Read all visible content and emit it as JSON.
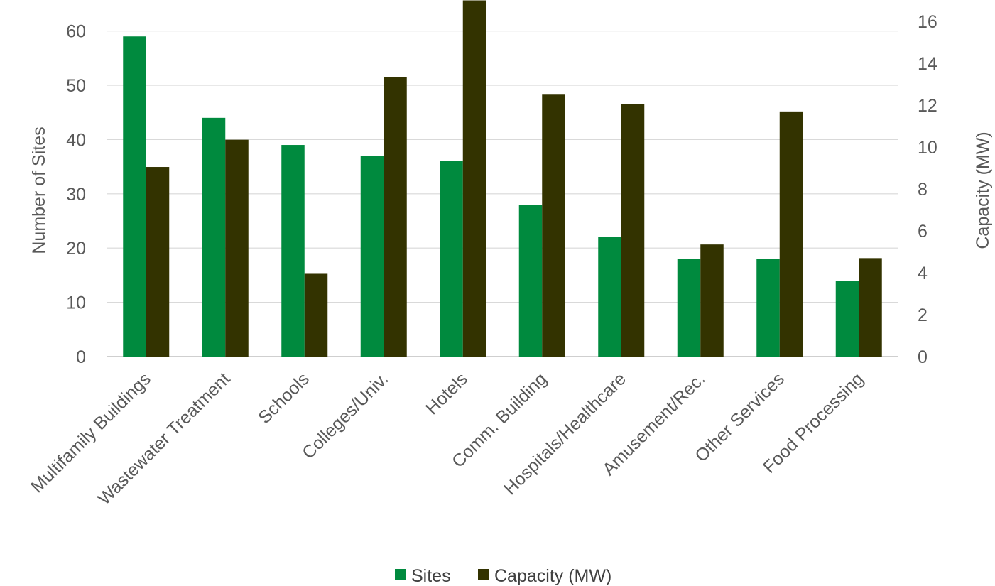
{
  "chart_data": {
    "type": "bar",
    "title": "",
    "categories": [
      "Multifamily Buildings",
      "Wastewater Treatment",
      "Schools",
      "Colleges/Univ.",
      "Hotels",
      "Comm. Building",
      "Hospitals/Healthcare",
      "Amusement/Rec.",
      "Other Services",
      "Food Processing"
    ],
    "series": [
      {
        "name": "Sites",
        "axis": "left",
        "color": "#008a3e",
        "values": [
          59,
          44,
          39,
          37,
          36,
          28,
          22,
          18,
          18,
          14
        ]
      },
      {
        "name": "Capacity (MW)",
        "axis": "right",
        "color": "#333300",
        "values": [
          9.05,
          10.35,
          3.95,
          13.35,
          17.0,
          12.5,
          12.05,
          5.35,
          11.7,
          4.7
        ]
      }
    ],
    "ylabel": "Number of Sites",
    "ylabel_right": "Capacity (MW)",
    "ylim": [
      0,
      60
    ],
    "ylim_right": [
      0,
      16
    ],
    "yticks": [
      0,
      10,
      20,
      30,
      40,
      50,
      60
    ],
    "yticks_right": [
      0,
      2,
      4,
      6,
      8,
      10,
      12,
      14,
      16
    ],
    "grid": true,
    "legend_position": "bottom"
  }
}
